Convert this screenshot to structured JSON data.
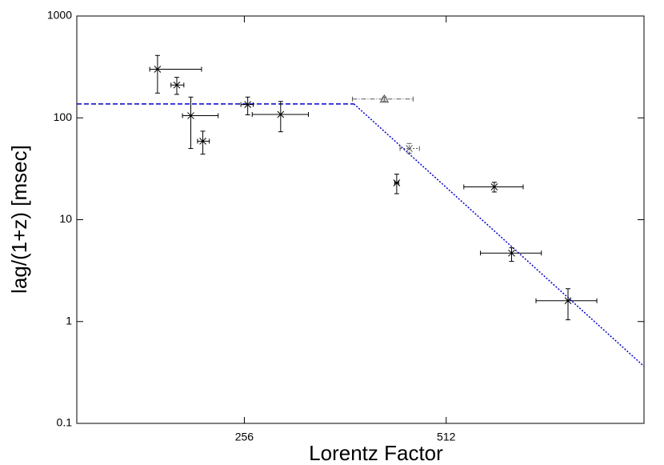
{
  "chart_data": {
    "type": "scatter",
    "x_label": "Lorentz Factor",
    "y_label": "lag/(1+z) [msec]",
    "x_log": true,
    "y_log": true,
    "xlim": [
      144,
      1010
    ],
    "xticks": [
      256,
      512
    ],
    "ylim": [
      0.1,
      1000
    ],
    "yticks": [
      0.1,
      1,
      10,
      100,
      1000
    ],
    "series": [
      {
        "marker": "x",
        "color": "#000000",
        "dash": "solid",
        "x": [
          190,
          203,
          213,
          222,
          259,
          290,
          432,
          604,
          641,
          778
        ],
        "x_min": [
          185,
          199,
          207,
          218,
          253,
          263,
          429,
          544,
          576,
          697
        ],
        "x_max": [
          221,
          208,
          234,
          227,
          264,
          319,
          435,
          667,
          710,
          859
        ],
        "y": [
          300,
          210,
          105,
          59,
          135,
          108,
          23,
          21,
          4.7,
          1.6
        ],
        "y_min": [
          175,
          170,
          50,
          44,
          107,
          73,
          18,
          18.7,
          3.9,
          1.04
        ],
        "y_max": [
          410,
          250,
          160,
          74,
          160,
          145,
          28,
          23.3,
          5.3,
          2.1
        ]
      },
      {
        "marker": "triangle",
        "color": "#555555",
        "dash": "dashdot",
        "x": [
          414
        ],
        "x_min": [
          371
        ],
        "x_max": [
          457
        ],
        "y": [
          153
        ],
        "y_min": [
          146
        ],
        "y_max": [
          160
        ]
      },
      {
        "marker": "x",
        "color": "#555555",
        "dash": "dotted",
        "x": [
          451
        ],
        "x_min": [
          437
        ],
        "x_max": [
          467
        ],
        "y": [
          50
        ],
        "y_min": [
          45
        ],
        "y_max": [
          56
        ]
      }
    ],
    "lines": [
      {
        "color": "#0000cc",
        "dash": "dashed",
        "x": [
          144,
          373
        ],
        "y": [
          137,
          137
        ]
      },
      {
        "color": "#0000cc",
        "dash": "dotted",
        "x": [
          373,
          1010
        ],
        "y": [
          137,
          0.363
        ]
      }
    ]
  }
}
